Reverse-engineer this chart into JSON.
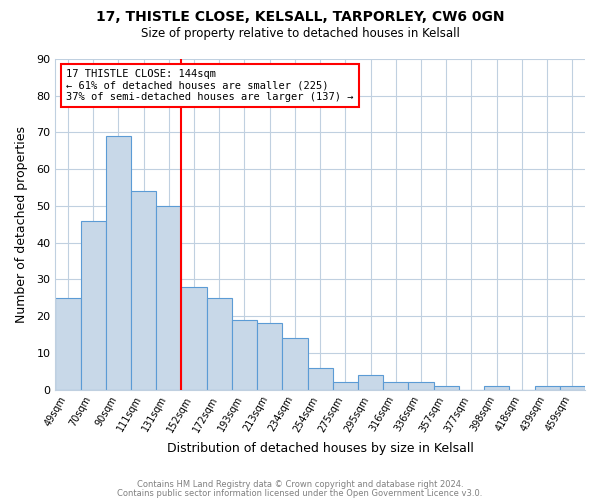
{
  "title_line1": "17, THISTLE CLOSE, KELSALL, TARPORLEY, CW6 0GN",
  "title_line2": "Size of property relative to detached houses in Kelsall",
  "xlabel": "Distribution of detached houses by size in Kelsall",
  "ylabel": "Number of detached properties",
  "bar_labels": [
    "49sqm",
    "70sqm",
    "90sqm",
    "111sqm",
    "131sqm",
    "152sqm",
    "172sqm",
    "193sqm",
    "213sqm",
    "234sqm",
    "254sqm",
    "275sqm",
    "295sqm",
    "316sqm",
    "336sqm",
    "357sqm",
    "377sqm",
    "398sqm",
    "418sqm",
    "439sqm",
    "459sqm"
  ],
  "bar_values": [
    25,
    46,
    69,
    54,
    50,
    28,
    25,
    19,
    18,
    14,
    6,
    2,
    4,
    2,
    2,
    1,
    0,
    1,
    0,
    1,
    1
  ],
  "bar_color": "#c8d8e8",
  "bar_edge_color": "#5b9bd5",
  "vline_x": 4.5,
  "vline_color": "red",
  "annotation_text": "17 THISTLE CLOSE: 144sqm\n← 61% of detached houses are smaller (225)\n37% of semi-detached houses are larger (137) →",
  "annotation_box_color": "white",
  "annotation_box_edge": "red",
  "ylim": [
    0,
    90
  ],
  "yticks": [
    0,
    10,
    20,
    30,
    40,
    50,
    60,
    70,
    80,
    90
  ],
  "footer_line1": "Contains HM Land Registry data © Crown copyright and database right 2024.",
  "footer_line2": "Contains public sector information licensed under the Open Government Licence v3.0.",
  "background_color": "#ffffff",
  "grid_color": "#c0d0e0"
}
